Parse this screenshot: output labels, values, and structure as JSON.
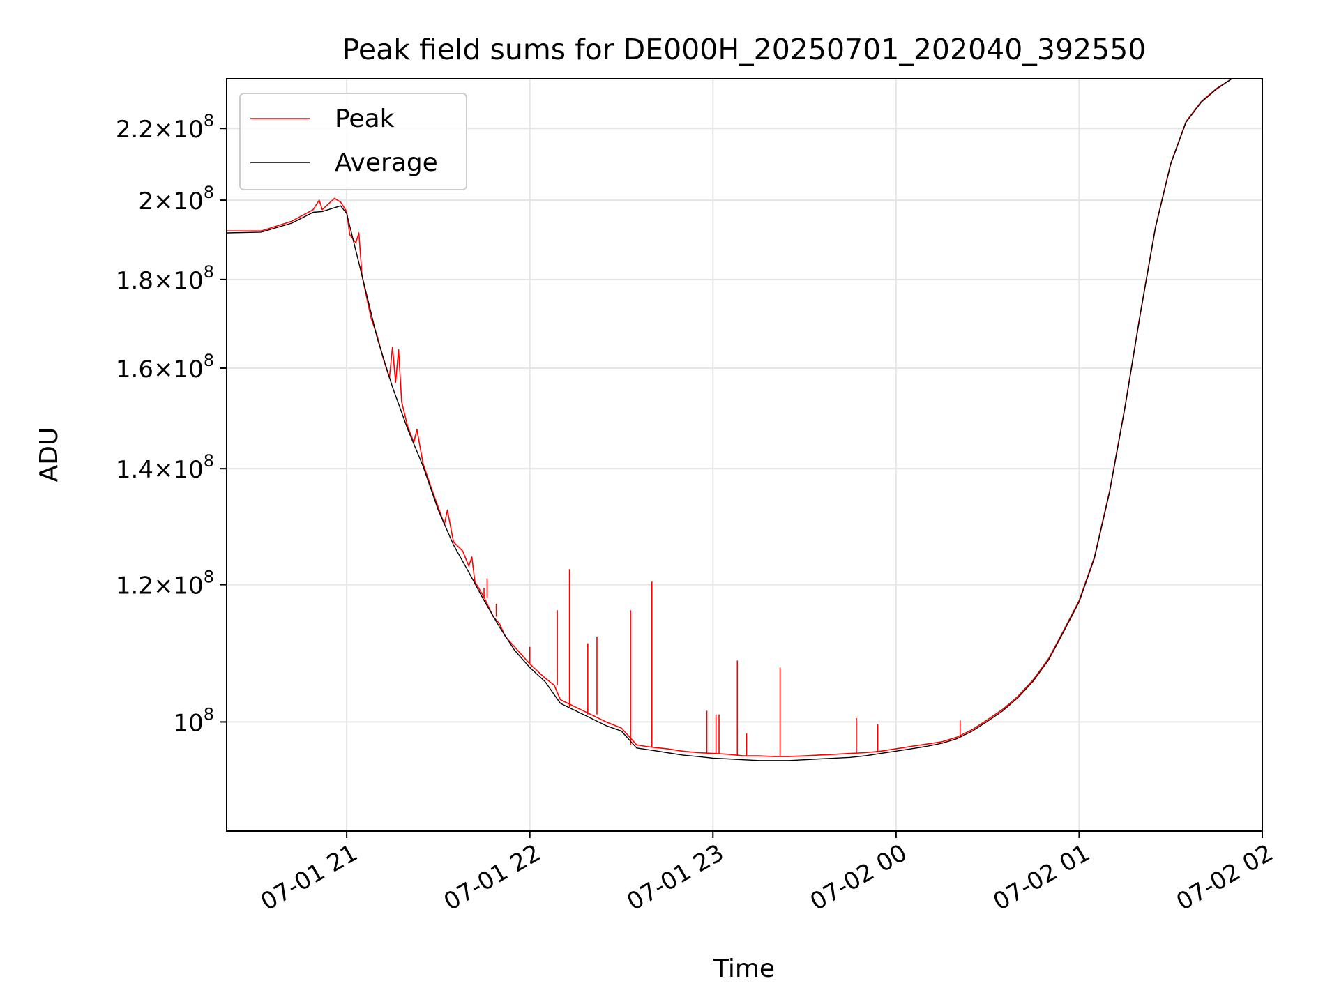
{
  "chart_data": {
    "type": "line",
    "title": "Peak field sums for DE000H_20250701_202040_392550",
    "xlabel": "Time",
    "ylabel": "ADU",
    "yscale": "log",
    "grid": true,
    "legend_position": "upper-left",
    "xlim": [
      "2025-07-01 20:20:40",
      "2025-07-02 02:00:00"
    ],
    "ylim": [
      86500000,
      235000000
    ],
    "x_ticks": [
      {
        "value": "2025-07-01 21:00",
        "label": "07-01 21"
      },
      {
        "value": "2025-07-01 22:00",
        "label": "07-01 22"
      },
      {
        "value": "2025-07-01 23:00",
        "label": "07-01 23"
      },
      {
        "value": "2025-07-02 00:00",
        "label": "07-02 00"
      },
      {
        "value": "2025-07-02 01:00",
        "label": "07-02 01"
      },
      {
        "value": "2025-07-02 02:00",
        "label": "07-02 02"
      }
    ],
    "y_ticks": [
      {
        "value": 100000000,
        "mantissa": "",
        "exponent": "8"
      },
      {
        "value": 120000000,
        "mantissa": "1.2",
        "exponent": "8"
      },
      {
        "value": 140000000,
        "mantissa": "1.4",
        "exponent": "8"
      },
      {
        "value": 160000000,
        "mantissa": "1.6",
        "exponent": "8"
      },
      {
        "value": 180000000,
        "mantissa": "1.8",
        "exponent": "8"
      },
      {
        "value": 200000000,
        "mantissa": "2",
        "exponent": "8"
      },
      {
        "value": 220000000,
        "mantissa": "2.2",
        "exponent": "8"
      }
    ],
    "series": [
      {
        "name": "Peak",
        "color": "#ff0000",
        "points": [
          [
            "2025-07-01 20:20:40",
            192000000
          ],
          [
            "2025-07-01 20:32",
            192000000
          ],
          [
            "2025-07-01 20:42",
            194500000
          ],
          [
            "2025-07-01 20:49",
            197500000
          ],
          [
            "2025-07-01 20:51",
            200000000
          ],
          [
            "2025-07-01 20:52",
            197500000
          ],
          [
            "2025-07-01 20:56",
            200500000
          ],
          [
            "2025-07-01 20:58",
            199500000
          ],
          [
            "2025-07-01 21:00",
            197000000
          ],
          [
            "2025-07-01 21:01",
            191000000
          ],
          [
            "2025-07-01 21:03",
            189000000
          ],
          [
            "2025-07-01 21:04",
            191500000
          ],
          [
            "2025-07-01 21:05",
            181000000
          ],
          [
            "2025-07-01 21:08",
            171000000
          ],
          [
            "2025-07-01 21:10",
            167000000
          ],
          [
            "2025-07-01 21:12",
            162000000
          ],
          [
            "2025-07-01 21:14",
            158000000
          ],
          [
            "2025-07-01 21:15",
            164500000
          ],
          [
            "2025-07-01 21:16",
            157000000
          ],
          [
            "2025-07-01 21:17",
            164000000
          ],
          [
            "2025-07-01 21:18",
            153000000
          ],
          [
            "2025-07-01 21:20",
            148000000
          ],
          [
            "2025-07-01 21:22",
            145000000
          ],
          [
            "2025-07-01 21:23",
            147500000
          ],
          [
            "2025-07-01 21:25",
            141000000
          ],
          [
            "2025-07-01 21:28",
            136000000
          ],
          [
            "2025-07-01 21:30",
            133000000
          ],
          [
            "2025-07-01 21:32",
            130000000
          ],
          [
            "2025-07-01 21:33",
            132500000
          ],
          [
            "2025-07-01 21:35",
            127000000
          ],
          [
            "2025-07-01 21:37",
            126000000
          ],
          [
            "2025-07-01 21:38",
            125500000
          ],
          [
            "2025-07-01 21:40",
            123000000
          ],
          [
            "2025-07-01 21:41",
            124500000
          ],
          [
            "2025-07-01 21:42",
            120500000
          ],
          [
            "2025-07-01 21:45",
            118000000
          ],
          [
            "2025-07-01 21:48",
            115000000
          ],
          [
            "2025-07-01 21:50",
            114000000
          ],
          [
            "2025-07-01 21:52",
            112000000
          ],
          [
            "2025-07-01 21:55",
            110500000
          ],
          [
            "2025-07-01 22:00",
            108000000
          ],
          [
            "2025-07-01 22:05",
            106000000
          ],
          [
            "2025-07-01 22:08",
            105000000
          ],
          [
            "2025-07-01 22:10",
            103000000
          ],
          [
            "2025-07-01 22:15",
            102000000
          ],
          [
            "2025-07-01 22:20",
            101000000
          ],
          [
            "2025-07-01 22:25",
            100000000
          ],
          [
            "2025-07-01 22:30",
            99200000
          ],
          [
            "2025-07-01 22:35",
            97000000
          ],
          [
            "2025-07-01 22:38",
            96800000
          ],
          [
            "2025-07-01 22:40",
            96700000
          ],
          [
            "2025-07-01 22:45",
            96500000
          ],
          [
            "2025-07-01 22:50",
            96200000
          ],
          [
            "2025-07-01 22:55",
            96000000
          ],
          [
            "2025-07-01 23:00",
            95900000
          ],
          [
            "2025-07-01 23:05",
            95800000
          ],
          [
            "2025-07-01 23:10",
            95600000
          ],
          [
            "2025-07-01 23:15",
            95600000
          ],
          [
            "2025-07-01 23:20",
            95500000
          ],
          [
            "2025-07-01 23:25",
            95500000
          ],
          [
            "2025-07-01 23:30",
            95600000
          ],
          [
            "2025-07-01 23:35",
            95700000
          ],
          [
            "2025-07-01 23:40",
            95800000
          ],
          [
            "2025-07-01 23:45",
            95900000
          ],
          [
            "2025-07-01 23:50",
            96000000
          ],
          [
            "2025-07-01 23:55",
            96200000
          ],
          [
            "2025-07-02 00:00",
            96500000
          ],
          [
            "2025-07-02 00:05",
            96800000
          ],
          [
            "2025-07-02 00:10",
            97100000
          ],
          [
            "2025-07-02 00:15",
            97400000
          ],
          [
            "2025-07-02 00:20",
            98000000
          ],
          [
            "2025-07-02 00:25",
            99000000
          ],
          [
            "2025-07-02 00:30",
            100300000
          ],
          [
            "2025-07-02 00:35",
            101700000
          ],
          [
            "2025-07-02 00:40",
            103500000
          ],
          [
            "2025-07-02 00:45",
            105800000
          ],
          [
            "2025-07-02 00:50",
            108800000
          ],
          [
            "2025-07-02 00:55",
            113000000
          ],
          [
            "2025-07-02 01:00",
            117500000
          ],
          [
            "2025-07-02 01:05",
            124500000
          ],
          [
            "2025-07-02 01:10",
            136000000
          ],
          [
            "2025-07-02 01:15",
            152000000
          ],
          [
            "2025-07-02 01:20",
            172000000
          ],
          [
            "2025-07-02 01:25",
            193000000
          ],
          [
            "2025-07-02 01:30",
            210000000
          ],
          [
            "2025-07-02 01:35",
            222000000
          ],
          [
            "2025-07-02 01:40",
            228000000
          ],
          [
            "2025-07-02 01:45",
            232000000
          ],
          [
            "2025-07-02 01:50",
            235000000
          ]
        ],
        "spikes": [
          [
            "2025-07-01 21:15",
            164500000
          ],
          [
            "2025-07-01 21:17",
            164000000
          ],
          [
            "2025-07-01 21:33",
            132500000
          ],
          [
            "2025-07-01 21:38",
            125500000
          ],
          [
            "2025-07-01 21:41",
            124500000
          ],
          [
            "2025-07-01 21:45",
            119500000
          ],
          [
            "2025-07-01 21:46",
            121000000
          ],
          [
            "2025-07-01 21:49",
            117000000
          ],
          [
            "2025-07-01 22:00",
            110500000
          ],
          [
            "2025-07-01 22:09",
            116000000
          ],
          [
            "2025-07-01 22:13",
            122500000
          ],
          [
            "2025-07-01 22:19",
            111000000
          ],
          [
            "2025-07-01 22:22",
            112000000
          ],
          [
            "2025-07-01 22:33",
            116000000
          ],
          [
            "2025-07-01 22:40",
            120500000
          ],
          [
            "2025-07-01 22:58",
            101500000
          ],
          [
            "2025-07-01 23:01",
            101000000
          ],
          [
            "2025-07-01 23:02",
            101000000
          ],
          [
            "2025-07-01 23:08",
            108500000
          ],
          [
            "2025-07-01 23:11",
            98500000
          ],
          [
            "2025-07-01 23:22",
            107500000
          ],
          [
            "2025-07-01 23:47",
            100500000
          ],
          [
            "2025-07-01 23:54",
            99700000
          ],
          [
            "2025-07-02 00:21",
            100200000
          ]
        ]
      },
      {
        "name": "Average",
        "color": "#000000",
        "points": [
          [
            "2025-07-01 20:20:40",
            191500000
          ],
          [
            "2025-07-01 20:32",
            191700000
          ],
          [
            "2025-07-01 20:42",
            194000000
          ],
          [
            "2025-07-01 20:49",
            196800000
          ],
          [
            "2025-07-01 20:52",
            197000000
          ],
          [
            "2025-07-01 20:58",
            198500000
          ],
          [
            "2025-07-01 21:00",
            196500000
          ],
          [
            "2025-07-01 21:05",
            181000000
          ],
          [
            "2025-07-01 21:10",
            166500000
          ],
          [
            "2025-07-01 21:15",
            156000000
          ],
          [
            "2025-07-01 21:20",
            147500000
          ],
          [
            "2025-07-01 21:25",
            140500000
          ],
          [
            "2025-07-01 21:30",
            132500000
          ],
          [
            "2025-07-01 21:35",
            126500000
          ],
          [
            "2025-07-01 21:40",
            122000000
          ],
          [
            "2025-07-01 21:45",
            117500000
          ],
          [
            "2025-07-01 21:50",
            113500000
          ],
          [
            "2025-07-01 21:55",
            110000000
          ],
          [
            "2025-07-01 22:00",
            107500000
          ],
          [
            "2025-07-01 22:05",
            105500000
          ],
          [
            "2025-07-01 22:10",
            102500000
          ],
          [
            "2025-07-01 22:15",
            101500000
          ],
          [
            "2025-07-01 22:20",
            100500000
          ],
          [
            "2025-07-01 22:25",
            99500000
          ],
          [
            "2025-07-01 22:30",
            98800000
          ],
          [
            "2025-07-01 22:35",
            96600000
          ],
          [
            "2025-07-01 22:40",
            96300000
          ],
          [
            "2025-07-01 22:45",
            96000000
          ],
          [
            "2025-07-01 22:50",
            95700000
          ],
          [
            "2025-07-01 22:55",
            95500000
          ],
          [
            "2025-07-01 23:00",
            95300000
          ],
          [
            "2025-07-01 23:05",
            95200000
          ],
          [
            "2025-07-01 23:10",
            95100000
          ],
          [
            "2025-07-01 23:15",
            95000000
          ],
          [
            "2025-07-01 23:20",
            95000000
          ],
          [
            "2025-07-01 23:25",
            95000000
          ],
          [
            "2025-07-01 23:30",
            95100000
          ],
          [
            "2025-07-01 23:35",
            95200000
          ],
          [
            "2025-07-01 23:40",
            95300000
          ],
          [
            "2025-07-01 23:45",
            95400000
          ],
          [
            "2025-07-01 23:50",
            95600000
          ],
          [
            "2025-07-01 23:55",
            95900000
          ],
          [
            "2025-07-02 00:00",
            96200000
          ],
          [
            "2025-07-02 00:05",
            96500000
          ],
          [
            "2025-07-02 00:10",
            96800000
          ],
          [
            "2025-07-02 00:15",
            97200000
          ],
          [
            "2025-07-02 00:20",
            97800000
          ],
          [
            "2025-07-02 00:25",
            98800000
          ],
          [
            "2025-07-02 00:30",
            100100000
          ],
          [
            "2025-07-02 00:35",
            101500000
          ],
          [
            "2025-07-02 00:40",
            103300000
          ],
          [
            "2025-07-02 00:45",
            105600000
          ],
          [
            "2025-07-02 00:50",
            108600000
          ],
          [
            "2025-07-02 00:55",
            112800000
          ],
          [
            "2025-07-02 01:00",
            117300000
          ],
          [
            "2025-07-02 01:05",
            124300000
          ],
          [
            "2025-07-02 01:10",
            135800000
          ],
          [
            "2025-07-02 01:15",
            151800000
          ],
          [
            "2025-07-02 01:20",
            171800000
          ],
          [
            "2025-07-02 01:25",
            192800000
          ],
          [
            "2025-07-02 01:30",
            209800000
          ],
          [
            "2025-07-02 01:35",
            221800000
          ],
          [
            "2025-07-02 01:40",
            227800000
          ],
          [
            "2025-07-02 01:45",
            231800000
          ],
          [
            "2025-07-02 01:50",
            235000000
          ]
        ]
      }
    ]
  }
}
